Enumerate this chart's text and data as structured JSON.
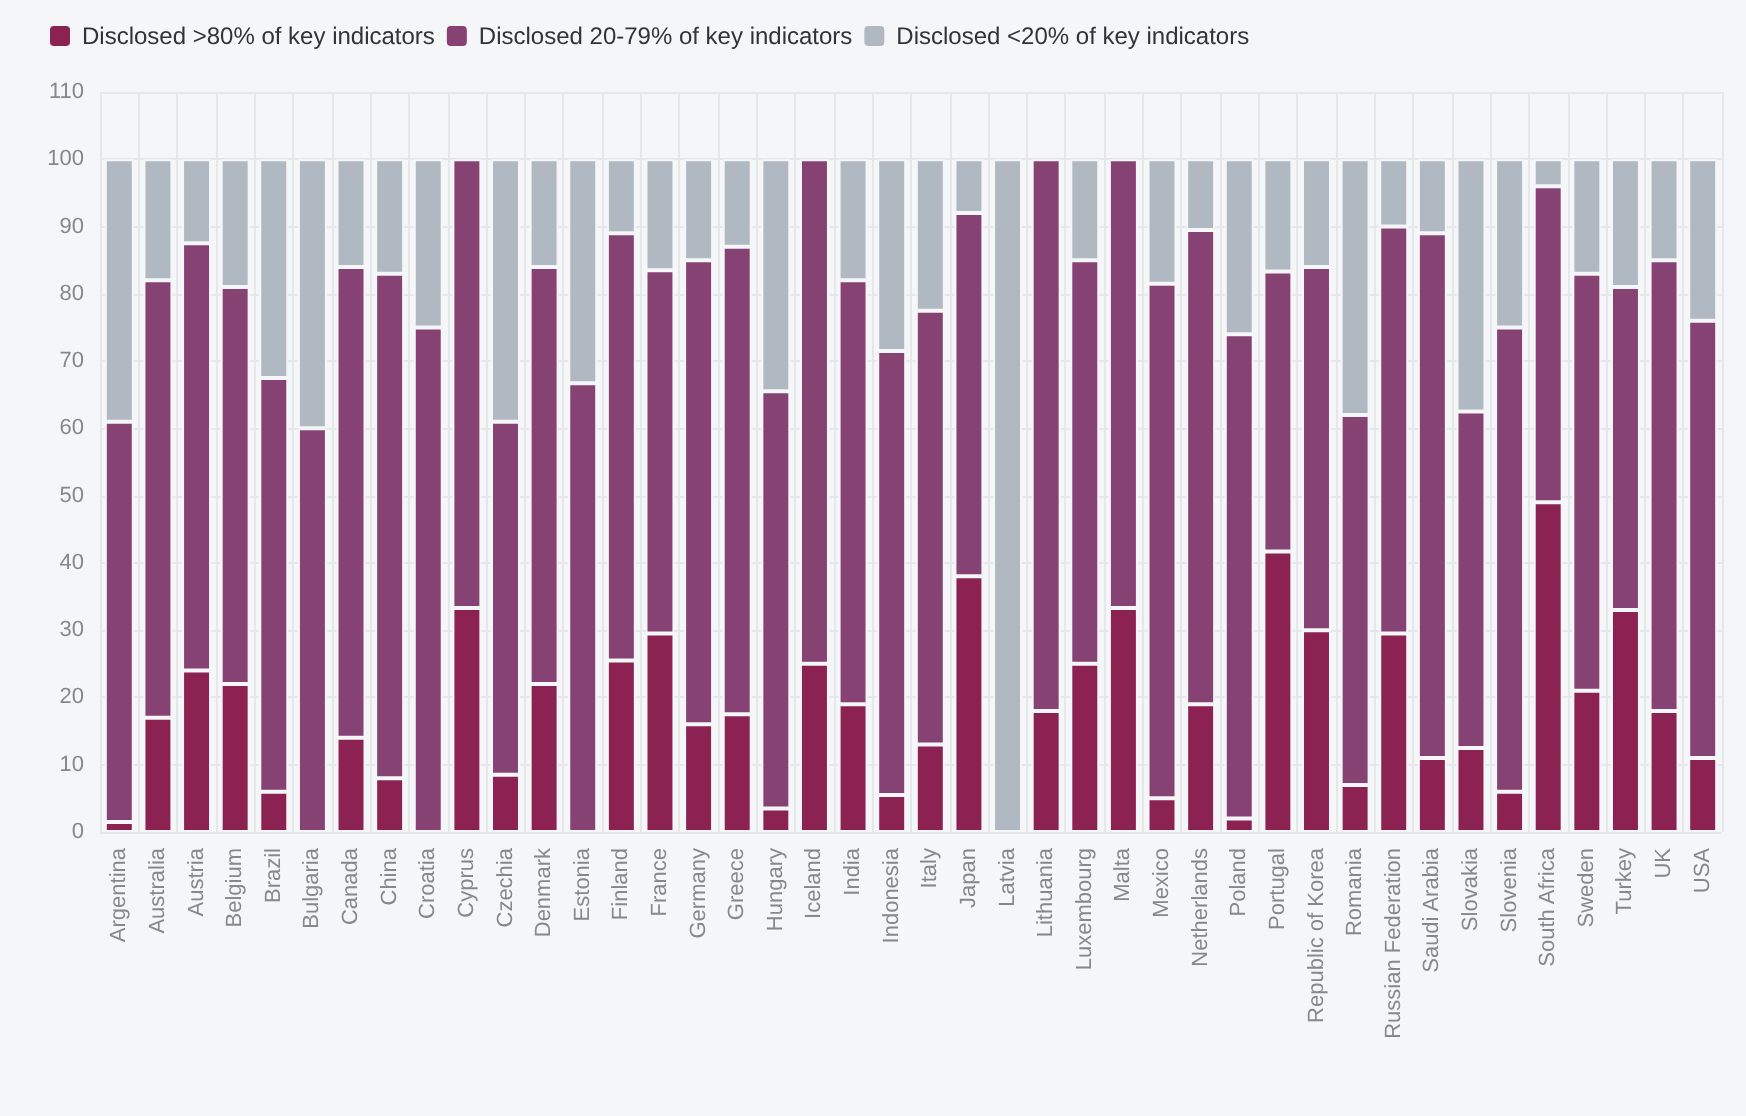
{
  "chart_data": {
    "type": "bar",
    "stacked": true,
    "categories": [
      "Argentina",
      "Australia",
      "Austria",
      "Belgium",
      "Brazil",
      "Bulgaria",
      "Canada",
      "China",
      "Croatia",
      "Cyprus",
      "Czechia",
      "Denmark",
      "Estonia",
      "Finland",
      "France",
      "Germany",
      "Greece",
      "Hungary",
      "Iceland",
      "India",
      "Indonesia",
      "Italy",
      "Japan",
      "Latvia",
      "Lithuania",
      "Luxembourg",
      "Malta",
      "Mexico",
      "Netherlands",
      "Poland",
      "Portugal",
      "Republic of Korea",
      "Romania",
      "Russian Federation",
      "Saudi Arabia",
      "Slovakia",
      "Slovenia",
      "South Africa",
      "Sweden",
      "Turkey",
      "UK",
      "USA"
    ],
    "series": [
      {
        "name": "Disclosed >80% of key indicators",
        "color": "#8b2252",
        "values": [
          1.5,
          17,
          24,
          22,
          6,
          0,
          14,
          8,
          0,
          33.3,
          8.5,
          22,
          0,
          25.5,
          29.5,
          16,
          17.5,
          3.5,
          25,
          19,
          5.5,
          13,
          38,
          0,
          18,
          25,
          33.3,
          5,
          19,
          2,
          41.7,
          30,
          7,
          29.5,
          11,
          12.5,
          6,
          49,
          21,
          33,
          18,
          11
        ]
      },
      {
        "name": "Disclosed 20-79% of key indicators",
        "color": "#874274",
        "values": [
          59.5,
          65,
          63.5,
          59,
          61.5,
          60,
          70,
          75,
          75,
          66.7,
          52.5,
          62,
          66.7,
          63.5,
          54,
          69,
          69.5,
          62,
          75,
          63,
          66,
          64.5,
          54,
          0,
          82,
          60,
          66.7,
          76.5,
          70.5,
          72,
          41.6,
          54,
          55,
          60.5,
          78,
          50,
          69,
          47,
          62,
          48,
          67,
          65
        ]
      },
      {
        "name": "Disclosed <20% of key indicators",
        "color": "#b0b9c2",
        "values": [
          39,
          18,
          12.5,
          19,
          32.5,
          40,
          16,
          17,
          25,
          0,
          39,
          16,
          33.3,
          11,
          16.5,
          15,
          13,
          34.5,
          0,
          18,
          28.5,
          22.5,
          8,
          100,
          0,
          15,
          0,
          18.5,
          10.5,
          26,
          16.7,
          16,
          38,
          10,
          11,
          37.5,
          25,
          4,
          17,
          19,
          15,
          24
        ]
      }
    ],
    "ylim": [
      0,
      110
    ],
    "yticks": [
      0,
      10,
      20,
      30,
      40,
      50,
      60,
      70,
      80,
      90,
      100,
      110
    ],
    "grid": true,
    "legend": "top left"
  }
}
